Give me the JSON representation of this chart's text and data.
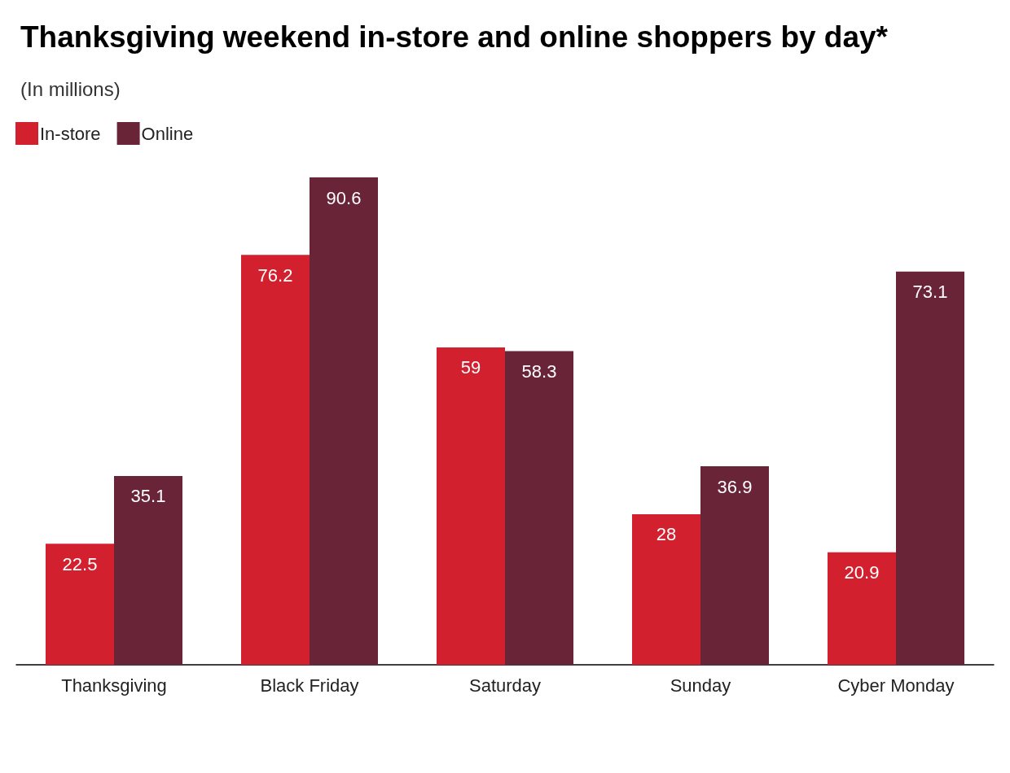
{
  "chart_data": {
    "type": "bar",
    "title": "Thanksgiving weekend in-store and online shoppers by day*",
    "subtitle": "(In millions)",
    "categories": [
      "Thanksgiving",
      "Black Friday",
      "Saturday",
      "Sunday",
      "Cyber Monday"
    ],
    "series": [
      {
        "name": "In-store",
        "color": "#d3202e",
        "values": [
          22.5,
          76.2,
          59,
          28,
          20.9
        ]
      },
      {
        "name": "Online",
        "color": "#692437",
        "values": [
          35.1,
          90.6,
          58.3,
          36.9,
          73.1
        ]
      }
    ],
    "data_labels": true,
    "legend": "top left"
  }
}
